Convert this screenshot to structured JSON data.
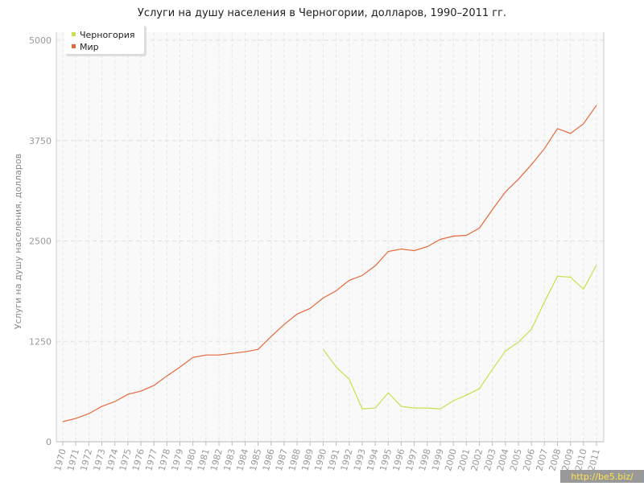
{
  "chart_data": {
    "type": "line",
    "title": "Услуги на душу населения в Черногории, долларов, 1990–2011 гг.",
    "y_label": "Услуги на душу населения, долларов",
    "categories": [
      "1970",
      "1971",
      "1972",
      "1973",
      "1974",
      "1975",
      "1976",
      "1977",
      "1978",
      "1979",
      "1980",
      "1981",
      "1982",
      "1983",
      "1984",
      "1985",
      "1986",
      "1987",
      "1988",
      "1989",
      "1990",
      "1991",
      "1992",
      "1993",
      "1994",
      "1995",
      "1996",
      "1997",
      "1998",
      "1999",
      "2000",
      "2001",
      "2002",
      "2003",
      "2004",
      "2005",
      "2006",
      "2007",
      "2008",
      "2009",
      "2010",
      "2011"
    ],
    "series": [
      {
        "name": "Черногория",
        "color": "#c8e04a",
        "values": [
          null,
          null,
          null,
          null,
          null,
          null,
          null,
          null,
          null,
          null,
          null,
          null,
          null,
          null,
          null,
          null,
          null,
          null,
          null,
          null,
          1150,
          930,
          780,
          410,
          420,
          610,
          440,
          420,
          420,
          410,
          510,
          580,
          660,
          900,
          1130,
          1240,
          1400,
          1740,
          2060,
          2050,
          1900,
          2200
        ]
      },
      {
        "name": "Мир",
        "color": "#e5683c",
        "values": [
          250,
          290,
          350,
          440,
          500,
          590,
          630,
          700,
          820,
          930,
          1050,
          1080,
          1080,
          1100,
          1120,
          1150,
          1310,
          1460,
          1590,
          1660,
          1790,
          1880,
          2010,
          2070,
          2190,
          2370,
          2400,
          2380,
          2430,
          2520,
          2560,
          2570,
          2660,
          2890,
          3110,
          3270,
          3450,
          3650,
          3900,
          3840,
          3960,
          4190
        ]
      }
    ],
    "ylim": [
      0,
      5000
    ],
    "yticks": [
      0,
      1250,
      2500,
      3750,
      5000
    ],
    "grid": true,
    "legend": "top-left"
  },
  "watermark": "http://be5.biz/"
}
